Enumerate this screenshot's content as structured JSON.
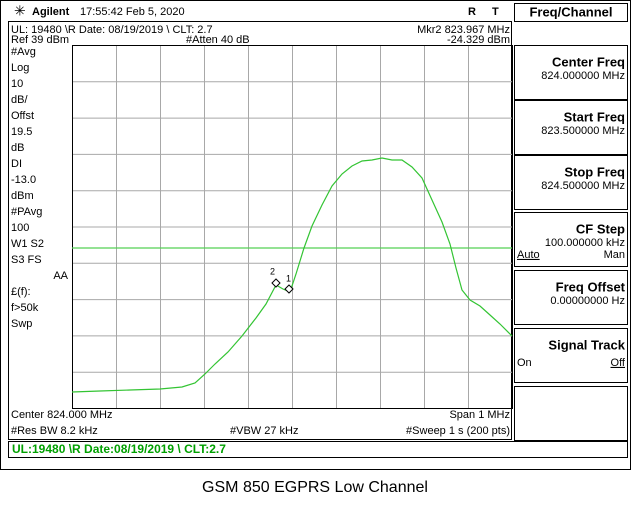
{
  "status_bar": {
    "brand": "Agilent",
    "datetime": "17:55:42 Feb 5, 2020",
    "indicators": [
      "R",
      "T"
    ]
  },
  "header": {
    "info": "UL: 19480 \\R Date: 08/19/2019 \\ CLT: 2.7",
    "marker_label": "Mkr2 823.967 MHz",
    "ref": "Ref 39 dBm",
    "atten": "#Atten 40 dB",
    "marker_value": "-24.329 dBm"
  },
  "side_annotations": [
    "#Avg",
    "Log",
    "10",
    "dB/",
    "Offst",
    "19.5",
    "dB",
    "DI",
    "-13.0",
    "dBm",
    "#PAvg",
    "100",
    "W1 S2",
    "S3 FS",
    "AA",
    "£(f):",
    "f>50k",
    "Swp"
  ],
  "markers": [
    "2",
    "1"
  ],
  "footer": {
    "center": "Center 824.000 MHz",
    "span": "Span 1 MHz",
    "res_bw": "#Res BW 8.2 kHz",
    "vbw": "#VBW 27 kHz",
    "sweep": "#Sweep 1 s (200 pts)"
  },
  "status_line": "UL:19480 \\R Date:08/19/2019 \\ CLT:2.7",
  "menu": {
    "title": "Freq/Channel",
    "keys": [
      {
        "label": "Center Freq",
        "value": "824.000000 MHz"
      },
      {
        "label": "Start Freq",
        "value": "823.500000 MHz"
      },
      {
        "label": "Stop Freq",
        "value": "824.500000 MHz"
      },
      {
        "label": "CF Step",
        "value": "100.000000 kHz",
        "options": [
          "Auto",
          "Man"
        ]
      },
      {
        "label": "Freq Offset",
        "value": "0.00000000 Hz"
      },
      {
        "label": "Signal Track",
        "options": [
          "On",
          "Off"
        ]
      }
    ]
  },
  "caption": "GSM 850 EGPRS Low Channel"
}
